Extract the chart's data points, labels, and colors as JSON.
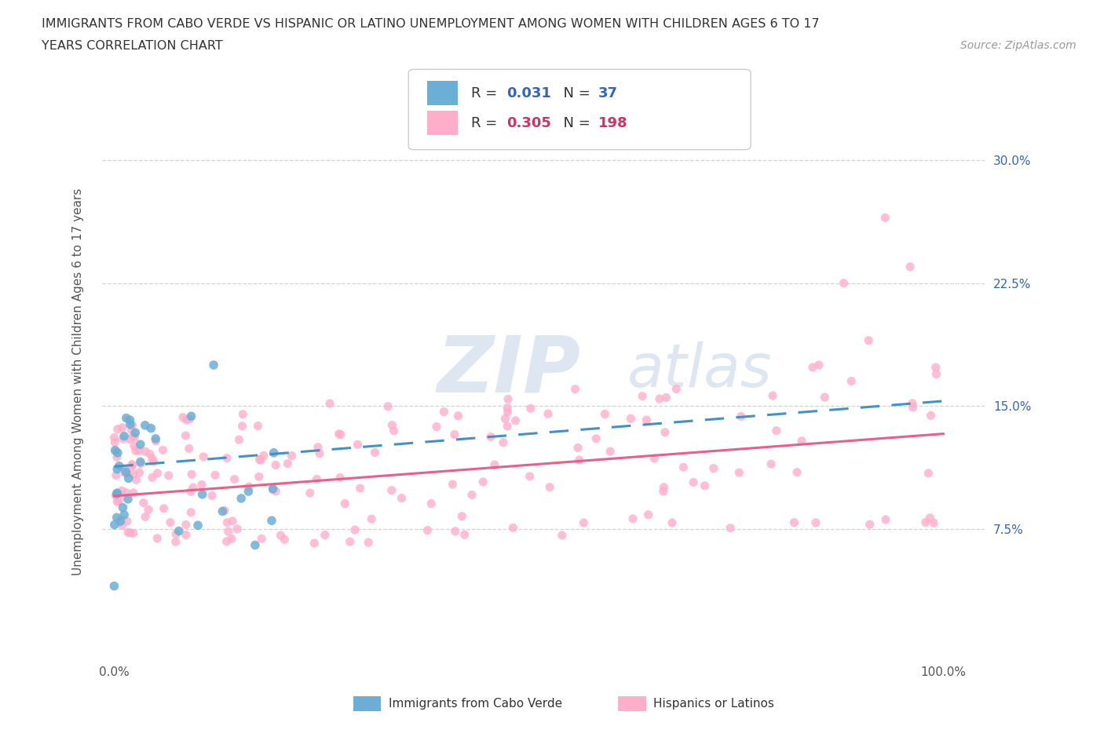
{
  "title_line1": "IMMIGRANTS FROM CABO VERDE VS HISPANIC OR LATINO UNEMPLOYMENT AMONG WOMEN WITH CHILDREN AGES 6 TO 17",
  "title_line2": "YEARS CORRELATION CHART",
  "source_text": "Source: ZipAtlas.com",
  "ylabel": "Unemployment Among Women with Children Ages 6 to 17 years",
  "r_cabo_verde": "0.031",
  "n_cabo_verde": "37",
  "r_hispanic": "0.305",
  "n_hispanic": "198",
  "color_cabo_verde": "#6baed6",
  "color_hispanic": "#ffaec9",
  "trendline_cabo_verde": "#4292c6",
  "trendline_hispanic": "#e8608a",
  "legend_label_1": "Immigrants from Cabo Verde",
  "legend_label_2": "Hispanics or Latinos",
  "watermark_zip": "ZIP",
  "watermark_atlas": "atlas",
  "background_color": "#ffffff",
  "grid_color": "#c8c8c8",
  "legend_text_color": "#333333",
  "legend_value_color": "#3366bb",
  "hisp_value_color": "#cc3366",
  "source_color": "#999999",
  "x_tick_first": "0.0%",
  "x_tick_last": "100.0%",
  "y_tick_labels": [
    "7.5%",
    "15.0%",
    "22.5%",
    "30.0%"
  ],
  "y_tick_positions": [
    0.075,
    0.15,
    0.225,
    0.3
  ]
}
